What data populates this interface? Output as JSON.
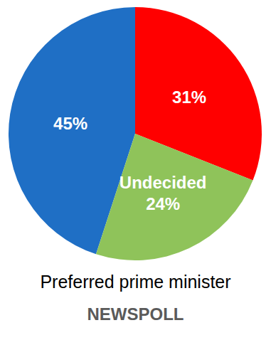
{
  "chart_data": {
    "type": "pie",
    "title": "Preferred prime minister",
    "subtitle": "NEWSPOLL",
    "categories": [
      null,
      null,
      "Undecided"
    ],
    "values": [
      45,
      31,
      24
    ],
    "value_labels": [
      "45%",
      "31%",
      "24%"
    ],
    "colors": [
      "#1f6fc5",
      "#ff0000",
      "#8fc35a"
    ],
    "data_labels": true,
    "legend": false
  }
}
